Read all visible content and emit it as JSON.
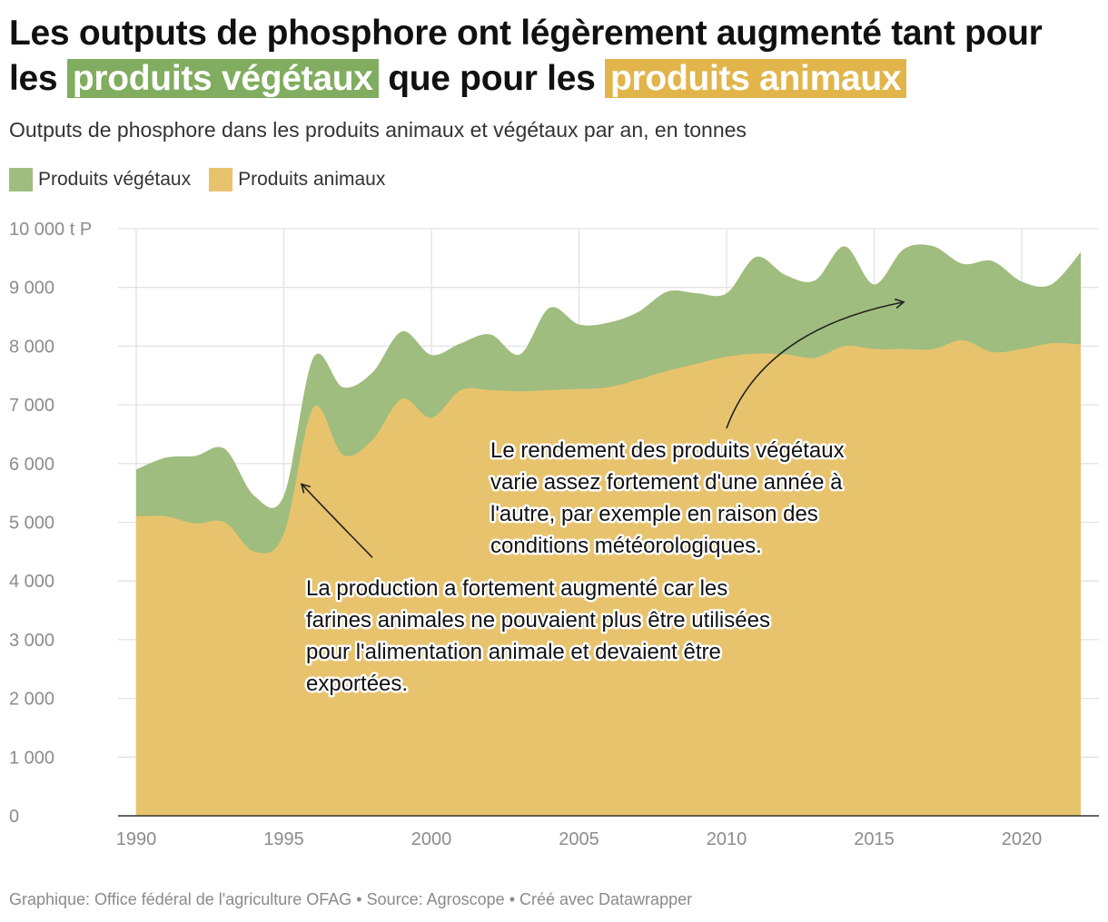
{
  "title": {
    "part1": "Les outputs de phosphore ont légèrement augmenté tant pour les ",
    "highlight_veg": "produits végétaux",
    "part2": " que pour les ",
    "highlight_ani": "produits animaux"
  },
  "subtitle": "Outputs de phosphore dans les produits animaux et végétaux par an, en tonnes",
  "legend": [
    {
      "label": "Produits végétaux",
      "color": "#9fbd7e"
    },
    {
      "label": "Produits animaux",
      "color": "#e8c36d"
    }
  ],
  "footer": "Graphique: Office fédéral de l'agriculture OFAG • Source: Agroscope • Créé avec Datawrapper",
  "chart_data": {
    "type": "area",
    "stacked": true,
    "title": "Les outputs de phosphore ont légèrement augmenté tant pour les produits végétaux que pour les produits animaux",
    "xlabel": "",
    "ylabel": "t P",
    "xlim": [
      1990,
      2022
    ],
    "ylim": [
      0,
      10000
    ],
    "grid": true,
    "legend_position": "top-left",
    "x": [
      1990,
      1991,
      1992,
      1993,
      1994,
      1995,
      1996,
      1997,
      1998,
      1999,
      2000,
      2001,
      2002,
      2003,
      2004,
      2005,
      2006,
      2007,
      2008,
      2009,
      2010,
      2011,
      2012,
      2013,
      2014,
      2015,
      2016,
      2017,
      2018,
      2019,
      2020,
      2021,
      2022
    ],
    "series": [
      {
        "name": "Produits animaux",
        "color": "#e8c36d",
        "values": [
          5100,
          5100,
          4980,
          5000,
          4500,
          4800,
          6950,
          6150,
          6400,
          7100,
          6780,
          7250,
          7250,
          7230,
          7250,
          7270,
          7300,
          7430,
          7580,
          7700,
          7820,
          7870,
          7860,
          7800,
          8000,
          7950,
          7950,
          7950,
          8100,
          7900,
          7950,
          8050,
          8030
        ]
      },
      {
        "name": "Produits végétaux",
        "color": "#9fbd7e",
        "values": [
          800,
          1000,
          1150,
          1250,
          950,
          650,
          850,
          1150,
          1150,
          1150,
          1070,
          800,
          950,
          630,
          1400,
          1100,
          1100,
          1150,
          1350,
          1200,
          1080,
          1650,
          1350,
          1320,
          1700,
          1100,
          1700,
          1750,
          1300,
          1550,
          1150,
          1000,
          1570
        ]
      }
    ],
    "x_ticks": [
      {
        "value": 1990,
        "label": "1990"
      },
      {
        "value": 1995,
        "label": "1995"
      },
      {
        "value": 2000,
        "label": "2000"
      },
      {
        "value": 2005,
        "label": "2005"
      },
      {
        "value": 2010,
        "label": "2010"
      },
      {
        "value": 2015,
        "label": "2015"
      },
      {
        "value": 2020,
        "label": "2020"
      }
    ],
    "y_ticks": [
      {
        "value": 0,
        "label": "0"
      },
      {
        "value": 1000,
        "label": "1 000"
      },
      {
        "value": 2000,
        "label": "2 000"
      },
      {
        "value": 3000,
        "label": "3 000"
      },
      {
        "value": 4000,
        "label": "4 000"
      },
      {
        "value": 5000,
        "label": "5 000"
      },
      {
        "value": 6000,
        "label": "6 000"
      },
      {
        "value": 7000,
        "label": "7 000"
      },
      {
        "value": 8000,
        "label": "8 000"
      },
      {
        "value": 9000,
        "label": "9 000"
      },
      {
        "value": 10000,
        "label": "10 000 t P"
      }
    ],
    "annotations": [
      {
        "lines": [
          "Le rendement des produits végétaux",
          "varie assez fortement d'une année à",
          "l'autre, par exemple en raison des",
          "conditions météorologiques."
        ],
        "arrow_from": [
          2010,
          6600
        ],
        "arrow_to": [
          2016,
          8750
        ]
      },
      {
        "lines": [
          "La production a fortement augmenté car les",
          "farines animales ne pouvaient plus être utilisées",
          "pour l'alimentation animale et devaient être",
          "exportées."
        ],
        "arrow_from": [
          1998,
          4400
        ],
        "arrow_to": [
          1995.6,
          5650
        ]
      }
    ]
  }
}
